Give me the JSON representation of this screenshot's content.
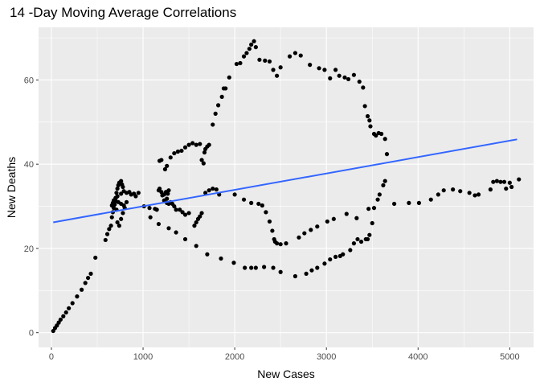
{
  "chart_data": {
    "type": "scatter",
    "title": "14 -Day Moving Average Correlations",
    "xlabel": "New  Cases",
    "ylabel": "New Deaths",
    "xlim": [
      -140,
      5260
    ],
    "ylim": [
      -3.5,
      72.5
    ],
    "x_ticks": [
      0,
      1000,
      2000,
      3000,
      4000,
      5000
    ],
    "x_tick_labels": [
      "0",
      "1000",
      "2000",
      "3000",
      "4000",
      "5000"
    ],
    "y_ticks": [
      0,
      20,
      40,
      60
    ],
    "y_tick_labels": [
      "0",
      "20",
      "40",
      "60"
    ],
    "grid": true,
    "colors": {
      "panel": "#ebebeb",
      "grid": "#ffffff",
      "points": "#000000",
      "trend": "#3366ff"
    },
    "trend_line": {
      "x": [
        20,
        5080
      ],
      "y": [
        26.2,
        45.9
      ]
    },
    "points": [
      [
        20,
        0.4
      ],
      [
        40,
        1.1
      ],
      [
        60,
        1.7
      ],
      [
        80,
        2.4
      ],
      [
        100,
        3.1
      ],
      [
        130,
        3.9
      ],
      [
        160,
        4.8
      ],
      [
        190,
        5.8
      ],
      [
        230,
        7.0
      ],
      [
        280,
        8.6
      ],
      [
        330,
        10.2
      ],
      [
        370,
        11.8
      ],
      [
        400,
        13.0
      ],
      [
        430,
        14.0
      ],
      [
        480,
        17.8
      ],
      [
        590,
        22.0
      ],
      [
        610,
        23.4
      ],
      [
        630,
        24.6
      ],
      [
        650,
        25.4
      ],
      [
        660,
        27.4
      ],
      [
        670,
        28.6
      ],
      [
        680,
        29.6
      ],
      [
        690,
        30.4
      ],
      [
        700,
        31.2
      ],
      [
        710,
        29.2
      ],
      [
        720,
        26.2
      ],
      [
        740,
        25.4
      ],
      [
        760,
        27.0
      ],
      [
        780,
        28.4
      ],
      [
        800,
        29.6
      ],
      [
        660,
        30.2
      ],
      [
        670,
        30.8
      ],
      [
        680,
        31.4
      ],
      [
        700,
        32.0
      ],
      [
        710,
        33.2
      ],
      [
        720,
        34.2
      ],
      [
        730,
        35.0
      ],
      [
        740,
        35.6
      ],
      [
        760,
        36.0
      ],
      [
        770,
        35.2
      ],
      [
        780,
        34.6
      ],
      [
        790,
        33.6
      ],
      [
        760,
        33.0
      ],
      [
        720,
        32.4
      ],
      [
        700,
        31.8
      ],
      [
        730,
        31.0
      ],
      [
        760,
        30.6
      ],
      [
        790,
        30.2
      ],
      [
        820,
        31.0
      ],
      [
        820,
        33.2
      ],
      [
        850,
        33.4
      ],
      [
        870,
        32.8
      ],
      [
        900,
        33.0
      ],
      [
        920,
        32.4
      ],
      [
        950,
        33.2
      ],
      [
        1010,
        30.0
      ],
      [
        1070,
        29.6
      ],
      [
        1130,
        29.4
      ],
      [
        1150,
        29.2
      ],
      [
        1170,
        33.8
      ],
      [
        1180,
        34.2
      ],
      [
        1200,
        33.4
      ],
      [
        1230,
        32.8
      ],
      [
        1260,
        31.8
      ],
      [
        1280,
        33.8
      ],
      [
        1300,
        31.0
      ],
      [
        1320,
        30.6
      ],
      [
        1340,
        30.0
      ],
      [
        1360,
        29.2
      ],
      [
        1400,
        29.2
      ],
      [
        1430,
        28.6
      ],
      [
        1460,
        28.0
      ],
      [
        1500,
        28.4
      ],
      [
        1560,
        25.4
      ],
      [
        1580,
        26.2
      ],
      [
        1600,
        27.0
      ],
      [
        1620,
        27.6
      ],
      [
        1640,
        28.4
      ],
      [
        1680,
        33.2
      ],
      [
        1720,
        33.8
      ],
      [
        1760,
        34.2
      ],
      [
        1800,
        34.0
      ],
      [
        1830,
        32.8
      ],
      [
        1250,
        33.4
      ],
      [
        1270,
        33.0
      ],
      [
        1210,
        32.6
      ],
      [
        1230,
        31.4
      ],
      [
        1260,
        30.8
      ],
      [
        1280,
        30.6
      ],
      [
        1180,
        40.8
      ],
      [
        1200,
        41.0
      ],
      [
        1240,
        38.8
      ],
      [
        1260,
        39.6
      ],
      [
        1300,
        41.6
      ],
      [
        1340,
        42.6
      ],
      [
        1380,
        43.0
      ],
      [
        1420,
        43.2
      ],
      [
        1460,
        44.0
      ],
      [
        1500,
        44.6
      ],
      [
        1540,
        45.0
      ],
      [
        1580,
        44.6
      ],
      [
        1620,
        44.8
      ],
      [
        1640,
        41.0
      ],
      [
        1660,
        40.2
      ],
      [
        1670,
        42.8
      ],
      [
        1680,
        43.6
      ],
      [
        1700,
        44.2
      ],
      [
        1720,
        44.6
      ],
      [
        1760,
        49.4
      ],
      [
        1790,
        52.0
      ],
      [
        1820,
        54.0
      ],
      [
        1860,
        56.0
      ],
      [
        1880,
        58.0
      ],
      [
        1900,
        58.0
      ],
      [
        1940,
        60.6
      ],
      [
        2020,
        63.8
      ],
      [
        2060,
        64.0
      ],
      [
        2100,
        65.6
      ],
      [
        2130,
        66.4
      ],
      [
        2160,
        67.4
      ],
      [
        2180,
        68.4
      ],
      [
        2210,
        69.2
      ],
      [
        2230,
        67.8
      ],
      [
        2270,
        64.8
      ],
      [
        2330,
        64.6
      ],
      [
        2380,
        64.4
      ],
      [
        2420,
        62.4
      ],
      [
        2460,
        61.0
      ],
      [
        2500,
        63.0
      ],
      [
        2600,
        65.6
      ],
      [
        2660,
        66.4
      ],
      [
        2720,
        65.8
      ],
      [
        2820,
        63.6
      ],
      [
        2920,
        62.8
      ],
      [
        2980,
        62.4
      ],
      [
        3040,
        60.4
      ],
      [
        3100,
        62.4
      ],
      [
        3140,
        61.0
      ],
      [
        3200,
        60.6
      ],
      [
        3240,
        60.2
      ],
      [
        3300,
        61.2
      ],
      [
        3360,
        59.6
      ],
      [
        3400,
        58.2
      ],
      [
        3420,
        53.8
      ],
      [
        3450,
        51.4
      ],
      [
        3470,
        50.4
      ],
      [
        3480,
        49.0
      ],
      [
        3520,
        47.2
      ],
      [
        3540,
        46.8
      ],
      [
        3570,
        47.4
      ],
      [
        3600,
        47.2
      ],
      [
        3640,
        46.0
      ],
      [
        3660,
        42.4
      ],
      [
        3640,
        36.0
      ],
      [
        3620,
        35.0
      ],
      [
        3580,
        32.8
      ],
      [
        3560,
        31.6
      ],
      [
        3520,
        29.6
      ],
      [
        3500,
        26.0
      ],
      [
        3470,
        23.2
      ],
      [
        3450,
        22.2
      ],
      [
        3430,
        22.2
      ],
      [
        3380,
        21.6
      ],
      [
        3340,
        22.2
      ],
      [
        3300,
        21.2
      ],
      [
        3260,
        19.6
      ],
      [
        3180,
        18.6
      ],
      [
        3150,
        18.2
      ],
      [
        3100,
        18.0
      ],
      [
        3040,
        17.4
      ],
      [
        2980,
        16.4
      ],
      [
        2900,
        15.4
      ],
      [
        2840,
        14.8
      ],
      [
        2780,
        14.0
      ],
      [
        2660,
        13.4
      ],
      [
        2500,
        14.4
      ],
      [
        2420,
        15.4
      ],
      [
        2320,
        15.6
      ],
      [
        2230,
        15.4
      ],
      [
        2180,
        15.4
      ],
      [
        2110,
        15.4
      ],
      [
        1990,
        16.6
      ],
      [
        1850,
        17.6
      ],
      [
        1700,
        18.6
      ],
      [
        1580,
        20.6
      ],
      [
        1460,
        22.2
      ],
      [
        1360,
        23.8
      ],
      [
        1280,
        24.8
      ],
      [
        1170,
        25.8
      ],
      [
        1080,
        27.4
      ],
      [
        2000,
        32.8
      ],
      [
        2100,
        31.6
      ],
      [
        2180,
        30.8
      ],
      [
        2260,
        30.6
      ],
      [
        2300,
        30.2
      ],
      [
        2340,
        28.6
      ],
      [
        2380,
        26.4
      ],
      [
        2410,
        24.2
      ],
      [
        2430,
        22.2
      ],
      [
        2440,
        21.6
      ],
      [
        2460,
        21.2
      ],
      [
        2500,
        21.0
      ],
      [
        2560,
        21.2
      ],
      [
        2700,
        22.6
      ],
      [
        2760,
        23.6
      ],
      [
        2830,
        24.4
      ],
      [
        2900,
        25.2
      ],
      [
        3010,
        26.4
      ],
      [
        3080,
        27.0
      ],
      [
        3220,
        28.2
      ],
      [
        3330,
        27.2
      ],
      [
        3460,
        29.4
      ],
      [
        3740,
        30.6
      ],
      [
        3900,
        30.8
      ],
      [
        4010,
        30.8
      ],
      [
        4140,
        31.6
      ],
      [
        4220,
        32.8
      ],
      [
        4280,
        33.8
      ],
      [
        4380,
        34.0
      ],
      [
        4460,
        33.6
      ],
      [
        4560,
        33.2
      ],
      [
        4620,
        32.6
      ],
      [
        4660,
        32.8
      ],
      [
        4790,
        34.0
      ],
      [
        4820,
        35.8
      ],
      [
        4860,
        36.0
      ],
      [
        4900,
        35.8
      ],
      [
        4940,
        35.8
      ],
      [
        4960,
        34.2
      ],
      [
        5000,
        35.6
      ],
      [
        5020,
        34.6
      ],
      [
        5100,
        36.4
      ]
    ]
  }
}
